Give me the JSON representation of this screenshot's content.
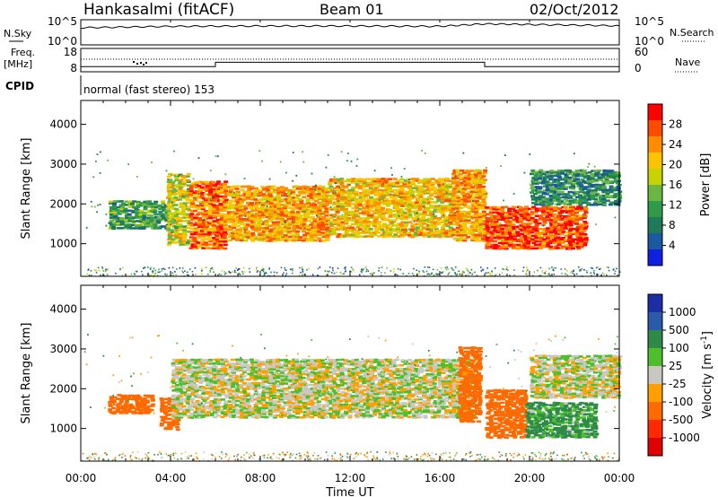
{
  "header": {
    "station": "Hankasalmi (fitACF)",
    "beam": "Beam 01",
    "date": "02/Oct/2012"
  },
  "panels": {
    "nsky": {
      "left_label": "N.Sky",
      "right_label": "N.Search",
      "left_ticks": [
        "10^5",
        "10^0"
      ],
      "right_ticks": [
        "10^5",
        "10^0"
      ]
    },
    "freq": {
      "left_label_line1": "Freq.",
      "left_label_line2": "[MHz]",
      "left_ticks": [
        "18",
        "8"
      ],
      "right_ticks": [
        "60",
        "0"
      ],
      "right_label": "Nave"
    },
    "cpid": {
      "label": "CPID",
      "text": "normal (fast stereo) 153"
    }
  },
  "colorbars": {
    "power": {
      "label": "Power [dB]",
      "ticks": [
        "28",
        "24",
        "20",
        "16",
        "12",
        "8",
        "4"
      ],
      "colors": [
        "#ff0000",
        "#ff4a00",
        "#ff8c00",
        "#ffc400",
        "#c8d200",
        "#6ab640",
        "#2f9a4a",
        "#1f7a5a",
        "#1a58a0",
        "#1020e0"
      ]
    },
    "velocity": {
      "label": "Velocity [m s",
      "label_exp": "-1",
      "label_end": "]",
      "ticks": [
        "1000",
        "500",
        "100",
        "25",
        "-25",
        "-100",
        "-500",
        "-1000"
      ],
      "colors": [
        "#1b2ea6",
        "#2a5aa8",
        "#2f8a4a",
        "#4cbf2a",
        "#c8c8c0",
        "#ffa000",
        "#ff6a00",
        "#ff2a00",
        "#e00000"
      ]
    }
  },
  "chart_data": [
    {
      "type": "line",
      "name": "N.Sky",
      "x": [
        "00:00",
        "04:00",
        "08:00",
        "12:00",
        "16:00",
        "18:00",
        "20:00",
        "24:00"
      ],
      "y": [
        3000,
        6000,
        7000,
        7000,
        6000,
        20000,
        15000,
        8000
      ],
      "yscale": "log",
      "ylim": [
        1,
        100000
      ]
    },
    {
      "type": "line",
      "name": "Freq./Nave",
      "x": [
        "00:00",
        "06:00",
        "06:00",
        "18:00",
        "18:00",
        "24:00"
      ],
      "frequency_mhz": [
        10,
        10,
        12,
        12,
        10,
        10
      ],
      "ylim": [
        8,
        18
      ],
      "nave": 55,
      "nave_lim": [
        0,
        60
      ]
    },
    {
      "type": "heatmap",
      "name": "Power",
      "xlabel": "",
      "ylabel": "Slant Range [km]",
      "x_ticks": [
        "00:00",
        "04:00",
        "08:00",
        "12:00",
        "16:00",
        "20:00",
        "00:00"
      ],
      "y_ticks": [
        1000,
        2000,
        3000,
        4000
      ],
      "xlim_hours": [
        0,
        24
      ],
      "ylim_km": [
        180,
        4600
      ],
      "colorbar_ticks_db": [
        4,
        8,
        12,
        16,
        20,
        24,
        28
      ],
      "scatter_bands": [
        {
          "t0": 1.2,
          "t1": 3.8,
          "r0": 1400,
          "r1": 2100,
          "value": 12
        },
        {
          "t0": 3.8,
          "t1": 4.8,
          "r0": 1000,
          "r1": 2800,
          "value": 18
        },
        {
          "t0": 4.8,
          "t1": 6.5,
          "r0": 900,
          "r1": 2600,
          "value": 24
        },
        {
          "t0": 6.5,
          "t1": 11.0,
          "r0": 1100,
          "r1": 2500,
          "value": 22
        },
        {
          "t0": 11.0,
          "t1": 16.5,
          "r0": 1200,
          "r1": 2700,
          "value": 20
        },
        {
          "t0": 16.5,
          "t1": 18.0,
          "r0": 1100,
          "r1": 2900,
          "value": 22
        },
        {
          "t0": 18.0,
          "t1": 22.5,
          "r0": 900,
          "r1": 2000,
          "value": 26
        },
        {
          "t0": 20.0,
          "t1": 24.0,
          "r0": 2000,
          "r1": 2900,
          "value": 10
        }
      ]
    },
    {
      "type": "heatmap",
      "name": "Velocity",
      "xlabel": "Time UT",
      "ylabel": "Slant Range [km]",
      "x_ticks": [
        "00:00",
        "04:00",
        "08:00",
        "12:00",
        "16:00",
        "20:00",
        "00:00"
      ],
      "y_ticks": [
        1000,
        2000,
        3000,
        4000
      ],
      "xlim_hours": [
        0,
        24
      ],
      "ylim_km": [
        180,
        4600
      ],
      "colorbar_ticks_ms": [
        1000,
        500,
        100,
        25,
        -25,
        -100,
        -500,
        -1000
      ],
      "scatter_bands": [
        {
          "t0": 1.2,
          "t1": 3.2,
          "r0": 1400,
          "r1": 1900,
          "value": -300
        },
        {
          "t0": 3.5,
          "t1": 4.3,
          "r0": 1000,
          "r1": 1800,
          "value": -200
        },
        {
          "t0": 4.0,
          "t1": 17.5,
          "r0": 1300,
          "r1": 2800,
          "value": 0
        },
        {
          "t0": 16.8,
          "t1": 17.8,
          "r0": 1200,
          "r1": 3100,
          "value": -400
        },
        {
          "t0": 18.0,
          "t1": 19.8,
          "r0": 800,
          "r1": 2000,
          "value": -300
        },
        {
          "t0": 19.8,
          "t1": 23.0,
          "r0": 800,
          "r1": 1700,
          "value": 80
        },
        {
          "t0": 20.0,
          "t1": 24.0,
          "r0": 1800,
          "r1": 2900,
          "value": 0
        }
      ]
    }
  ]
}
